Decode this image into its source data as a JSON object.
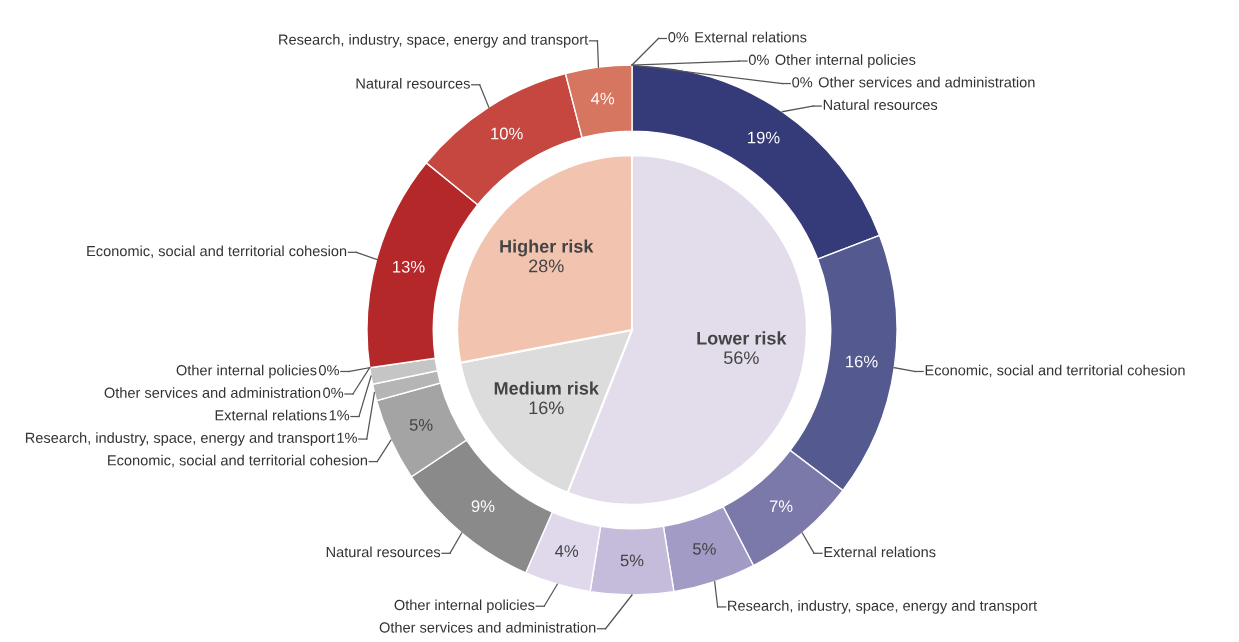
{
  "chart_data": {
    "type": "donut",
    "categories": [
      "Natural resources",
      "Economic, social and territorial cohesion",
      "External relations",
      "Research, industry, space, energy and transport",
      "Other services and administration",
      "Other internal policies",
      "Natural resources",
      "Economic, social and territorial cohesion",
      "Research, industry, space, energy and transport",
      "External relations",
      "Other internal policies",
      "Other services and administration",
      "Economic, social and territorial cohesion",
      "Natural resources",
      "Research, industry, space, energy and transport",
      "External relations",
      "Other internal policies",
      "Other services and administration"
    ],
    "series": [
      {
        "values": [
          19,
          16,
          7,
          5,
          5,
          4,
          9,
          5,
          1,
          1,
          0,
          0,
          13,
          10,
          4,
          0,
          0,
          0
        ],
        "colors": [
          "#353a78",
          "#545a90",
          "#7b78aa",
          "#a29bc6",
          "#c5bcdc",
          "#e0d9ec",
          "#8a8a8a",
          "#a4a4a4",
          "#b5b5b5",
          "#c5c5c5",
          "#d0d0d0",
          "#dcdcdc",
          "#b5282a",
          "#c5473f",
          "#d67560",
          "#e39a86",
          "#eeb8a6",
          "#f3d0c3"
        ],
        "value_labels": [
          "19%",
          "16%",
          "7%",
          "5%",
          "5%",
          "4%",
          "9%",
          "5%",
          "1%",
          "1%",
          "0%",
          "0%",
          "13%",
          "10%",
          "4%",
          "0%",
          "0%",
          "0%"
        ]
      },
      {
        "type": "pie",
        "values": [
          56,
          null,
          null,
          null,
          null,
          null,
          16,
          null,
          null,
          null,
          null,
          null,
          28,
          null,
          null,
          null,
          null,
          null
        ],
        "colors": [
          "#e3dcea",
          null,
          null,
          null,
          null,
          null,
          "#dcdcdc",
          null,
          null,
          null,
          null,
          null,
          "#f2c4b0",
          null,
          null,
          null,
          null,
          null
        ],
        "value_labels": [
          "56%",
          null,
          null,
          null,
          null,
          null,
          "16%",
          null,
          null,
          null,
          null,
          null,
          "28%",
          null,
          null,
          null,
          null,
          null
        ]
      }
    ],
    "annotations": [
      "Lower risk",
      "Medium risk",
      "Higher risk"
    ]
  }
}
